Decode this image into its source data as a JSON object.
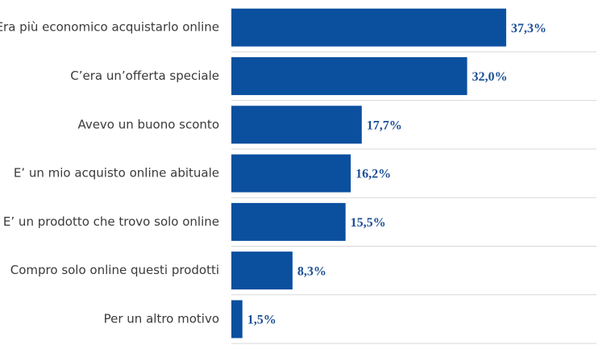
{
  "chart_data": {
    "type": "bar",
    "orientation": "horizontal",
    "categories": [
      "Era più economico acquistarlo online",
      "C’era un’offerta speciale",
      "Avevo un buono sconto",
      "E’ un mio acquisto online abituale",
      "E’ un prodotto che trovo solo online",
      "Compro solo online questi prodotti",
      "Per un altro motivo"
    ],
    "values": [
      37.3,
      32.0,
      17.7,
      16.2,
      15.5,
      8.3,
      1.5
    ],
    "value_labels": [
      "37,3%",
      "32,0%",
      "17,7%",
      "16,2%",
      "15,5%",
      "8,3%",
      "1,5%"
    ],
    "color": "#0b4f9f"
  }
}
